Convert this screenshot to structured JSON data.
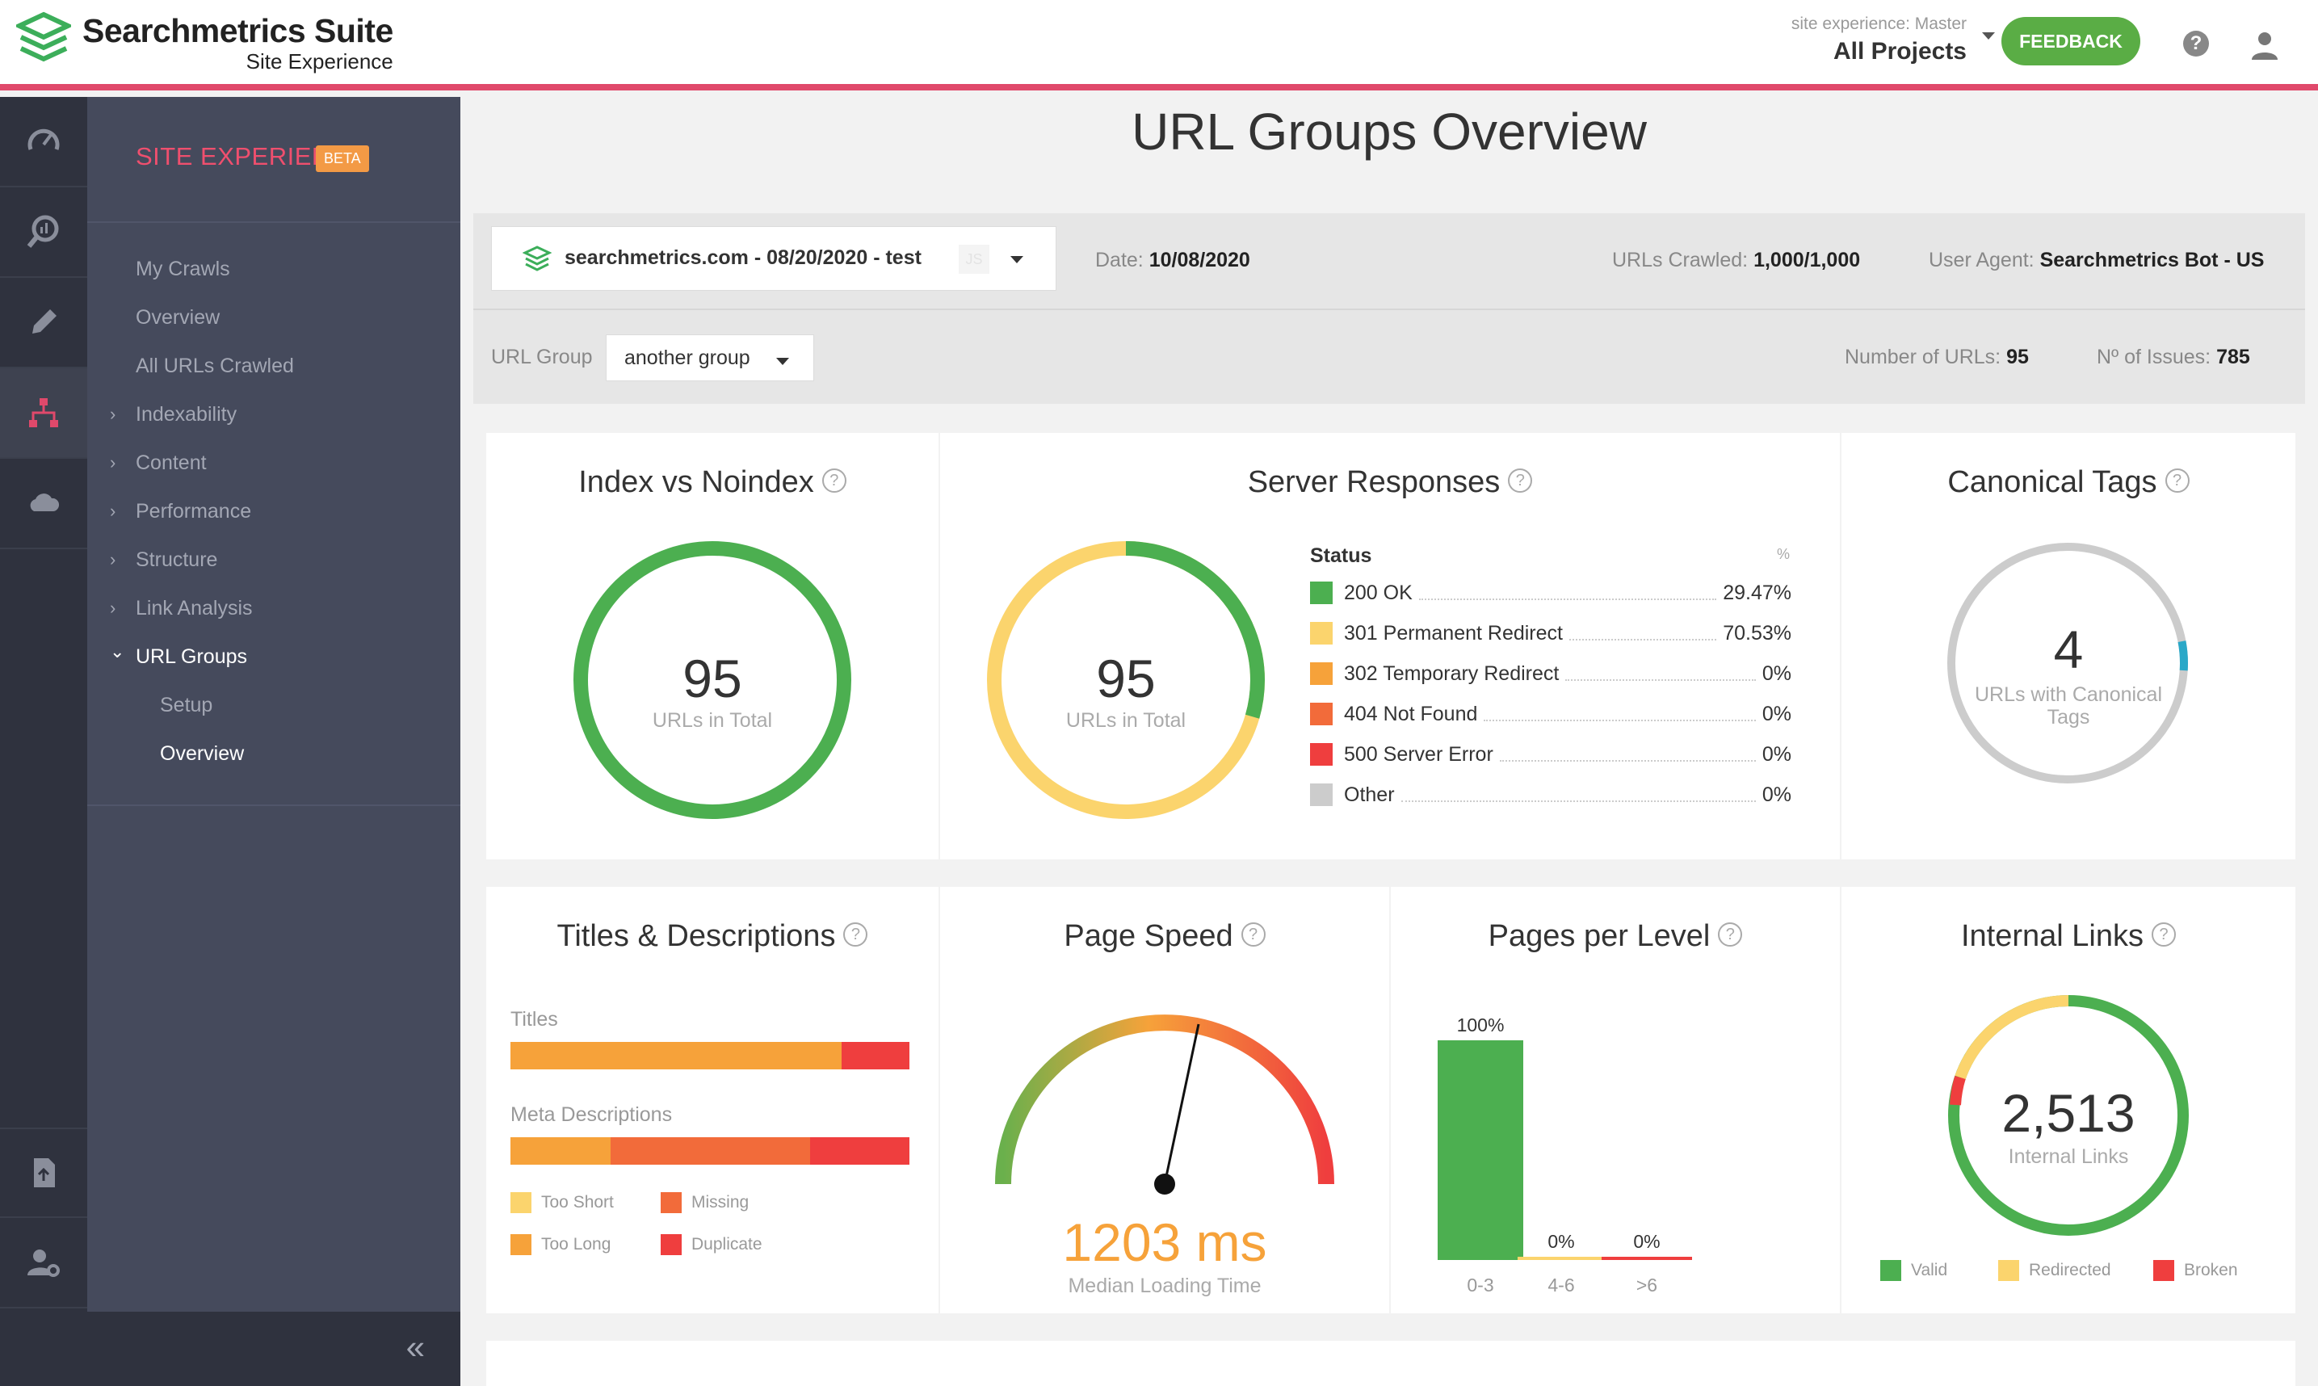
{
  "brand": {
    "title": "Searchmetrics Suite",
    "subtitle": "Site Experience"
  },
  "header": {
    "project_label": "site experience: Master",
    "project_name": "All Projects",
    "feedback_label": "FEEDBACK",
    "help_glyph": "?"
  },
  "rail": {
    "icons": [
      "speedometer-icon",
      "analytics-icon",
      "pencil-icon",
      "sitemap-icon",
      "cloud-icon",
      "report-icon",
      "user-settings-icon"
    ]
  },
  "sidebar": {
    "title": "SITE EXPERIENCE",
    "badge": "BETA",
    "items": [
      {
        "label": "My Crawls",
        "chevron": ""
      },
      {
        "label": "Overview",
        "chevron": ""
      },
      {
        "label": "All URLs Crawled",
        "chevron": ""
      },
      {
        "label": "Indexability",
        "chevron": "›"
      },
      {
        "label": "Content",
        "chevron": "›"
      },
      {
        "label": "Performance",
        "chevron": "›"
      },
      {
        "label": "Structure",
        "chevron": "›"
      },
      {
        "label": "Link Analysis",
        "chevron": "›"
      },
      {
        "label": "URL Groups",
        "chevron": "⌄"
      }
    ],
    "sub_items": [
      {
        "label": "Setup"
      },
      {
        "label": "Overview"
      }
    ],
    "collapse_glyph": "«"
  },
  "page": {
    "title": "URL Groups Overview"
  },
  "filter": {
    "crawl": "searchmetrics.com - 08/20/2020 - test",
    "js_badge": "JS",
    "date_label": "Date: ",
    "date_value": "10/08/2020",
    "urls_crawled_label": "URLs Crawled: ",
    "urls_crawled_value": "1,000/1,000",
    "user_agent_label": "User Agent: ",
    "user_agent_value": "Searchmetrics Bot - US",
    "url_group_label": "URL Group",
    "url_group_value": "another group",
    "num_urls_label": "Number of URLs: ",
    "num_urls_value": "95",
    "issues_label": "Nº of Issues: ",
    "issues_value": "785"
  },
  "colors": {
    "green": "#4caf50",
    "yellow": "#fbd46d",
    "orange": "#f6a23a",
    "red_orange": "#f26b3a",
    "red": "#ef3e3e",
    "grey": "#cccccc",
    "teal": "#2aa8c8",
    "pink_accent": "#e0496b"
  },
  "cards": {
    "index": {
      "title": "Index vs Noindex",
      "value": "95",
      "sub": "URLs in Total"
    },
    "server": {
      "title": "Server Responses",
      "value": "95",
      "sub": "URLs in Total",
      "legend_header": "Status",
      "legend_pct_header": "%",
      "rows": [
        {
          "label": "200 OK",
          "pct": "29.47%",
          "color": "#4caf50"
        },
        {
          "label": "301 Permanent Redirect",
          "pct": "70.53%",
          "color": "#fbd46d"
        },
        {
          "label": "302 Temporary Redirect",
          "pct": "0%",
          "color": "#f6a23a"
        },
        {
          "label": "404 Not Found",
          "pct": "0%",
          "color": "#f26b3a"
        },
        {
          "label": "500 Server Error",
          "pct": "0%",
          "color": "#ef3e3e"
        },
        {
          "label": "Other",
          "pct": "0%",
          "color": "#cccccc"
        }
      ]
    },
    "canonical": {
      "title": "Canonical Tags",
      "value": "4",
      "sub1": "URLs with Canonical",
      "sub2": "Tags"
    },
    "titles": {
      "title": "Titles & Descriptions",
      "titles_label": "Titles",
      "meta_label": "Meta Descriptions",
      "titles_bar": [
        {
          "color": "#f6a23a",
          "frac": 0.83
        },
        {
          "color": "#ef3e3e",
          "frac": 0.17
        }
      ],
      "meta_bar": [
        {
          "color": "#f6a23a",
          "frac": 0.25
        },
        {
          "color": "#f26b3a",
          "frac": 0.5
        },
        {
          "color": "#ef3e3e",
          "frac": 0.25
        }
      ],
      "legend": [
        {
          "label": "Too Short",
          "color": "#fbd46d"
        },
        {
          "label": "Missing",
          "color": "#f26b3a"
        },
        {
          "label": "Too Long",
          "color": "#f6a23a"
        },
        {
          "label": "Duplicate",
          "color": "#ef3e3e"
        }
      ]
    },
    "speed": {
      "title": "Page Speed",
      "value": "1203 ms",
      "sub": "Median Loading Time"
    },
    "levels": {
      "title": "Pages per Level",
      "bars": [
        {
          "cat": "0-3",
          "pct": "100%",
          "value": 100,
          "color": "#4caf50"
        },
        {
          "cat": "4-6",
          "pct": "0%",
          "value": 0,
          "color": "#fbd46d"
        },
        {
          "cat": ">6",
          "pct": "0%",
          "value": 0,
          "color": "#ef3e3e"
        }
      ]
    },
    "links": {
      "title": "Internal Links",
      "value": "2,513",
      "sub": "Internal Links",
      "legend": [
        {
          "label": "Valid",
          "color": "#4caf50"
        },
        {
          "label": "Redirected",
          "color": "#fbd46d"
        },
        {
          "label": "Broken",
          "color": "#ef3e3e"
        }
      ]
    }
  }
}
